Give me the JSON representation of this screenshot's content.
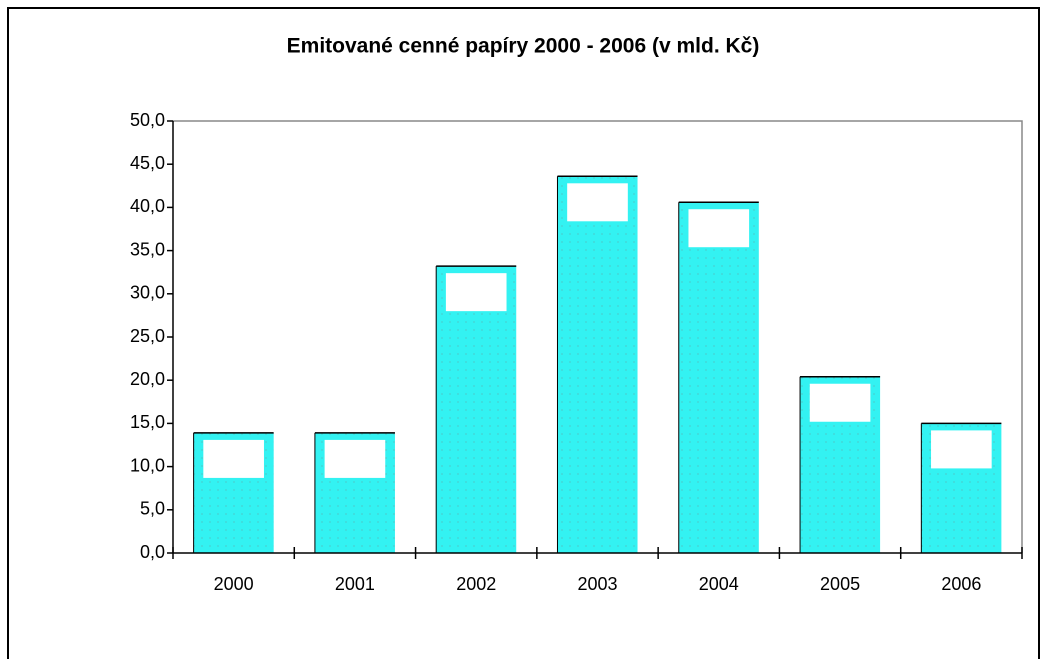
{
  "chart_data": {
    "type": "bar",
    "title": "Emitované cenné papíry 2000 - 2006 (v mld. Kč)",
    "categories": [
      "2000",
      "2001",
      "2002",
      "2003",
      "2004",
      "2005",
      "2006"
    ],
    "values": [
      13.9,
      13.9,
      33.2,
      43.6,
      40.6,
      20.4,
      15.0
    ],
    "color": "#33f2f2",
    "ylim": [
      0,
      50
    ],
    "yticks": [
      {
        "value": 0,
        "label": "0,0"
      },
      {
        "value": 5,
        "label": "5,0"
      },
      {
        "value": 10,
        "label": "10,0"
      },
      {
        "value": 15,
        "label": "15,0"
      },
      {
        "value": 20,
        "label": "20,0"
      },
      {
        "value": 25,
        "label": "25,0"
      },
      {
        "value": 30,
        "label": "30,0"
      },
      {
        "value": 35,
        "label": "35,0"
      },
      {
        "value": 40,
        "label": "40,0"
      },
      {
        "value": 45,
        "label": "45,0"
      },
      {
        "value": 50,
        "label": "50,0"
      }
    ],
    "grid": false
  }
}
